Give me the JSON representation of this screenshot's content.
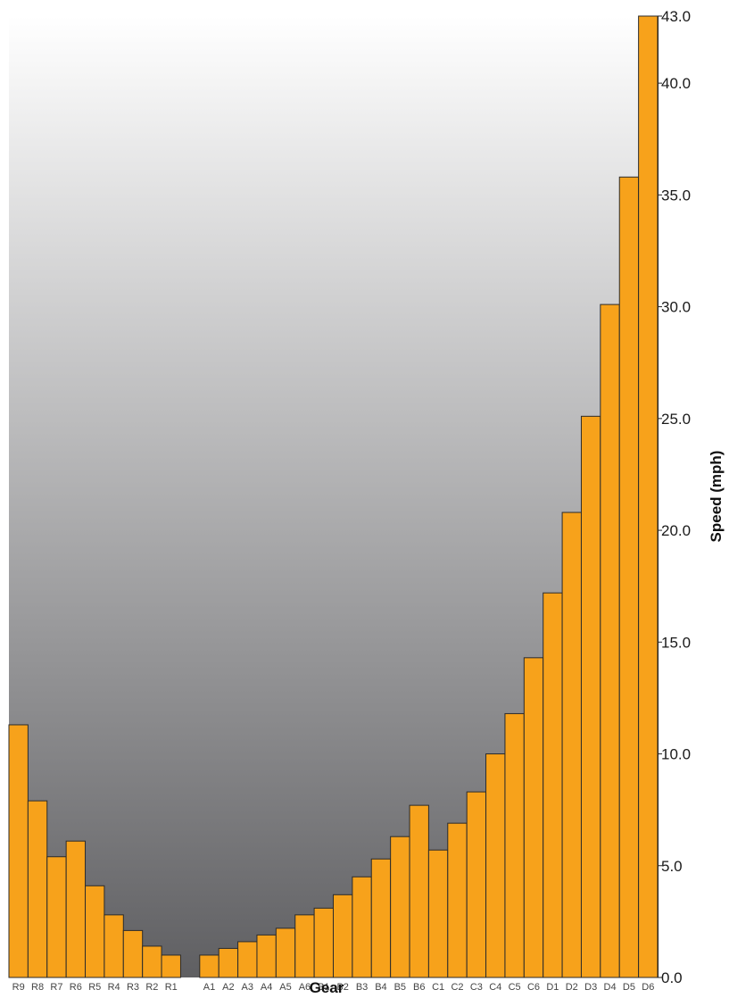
{
  "chart_data": {
    "type": "bar",
    "xlabel": "Gear",
    "ylabel": "Speed (mph)",
    "ylim": [
      0,
      43
    ],
    "y_axis_position": "right",
    "yticks": [
      "0.0",
      "5.0",
      "10.0",
      "15.0",
      "20.0",
      "25.0",
      "30.0",
      "35.0",
      "40.0",
      "43.0"
    ],
    "categories": [
      "R9",
      "R8",
      "R7",
      "R6",
      "R5",
      "R4",
      "R3",
      "R2",
      "R1",
      "",
      "A1",
      "A2",
      "A3",
      "A4",
      "A5",
      "A6",
      "B1",
      "B2",
      "B3",
      "B4",
      "B5",
      "B6",
      "C1",
      "C2",
      "C3",
      "C4",
      "C5",
      "C6",
      "D1",
      "D2",
      "D3",
      "D4",
      "D5",
      "D6"
    ],
    "values": [
      11.3,
      7.9,
      5.4,
      6.1,
      4.1,
      2.8,
      2.1,
      1.4,
      1.0,
      null,
      1.0,
      1.3,
      1.6,
      1.9,
      2.2,
      2.8,
      3.1,
      3.7,
      4.5,
      5.3,
      6.3,
      7.7,
      5.7,
      6.9,
      8.3,
      10.0,
      11.8,
      14.3,
      17.2,
      20.8,
      25.1,
      30.1,
      35.8,
      43.0
    ],
    "colors": {
      "bar_fill": "#F7A21B",
      "bar_stroke": "#2b2b2b",
      "background_top": "#ffffff",
      "background_bottom": "#5f5f62"
    },
    "grid": false,
    "legend": "none"
  }
}
